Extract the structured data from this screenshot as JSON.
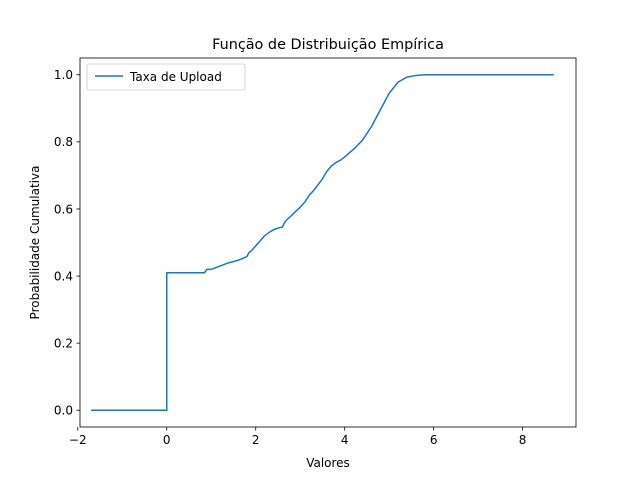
{
  "chart_data": {
    "type": "line",
    "title": "Função de Distribuição Empírica",
    "xlabel": "Valores",
    "ylabel": "Probabilidade Cumulativa",
    "xlim": [
      -1.95,
      9.2
    ],
    "ylim": [
      -0.05,
      1.05
    ],
    "xticks": [
      -2,
      0,
      2,
      4,
      6,
      8
    ],
    "xtick_labels": [
      "−2",
      "0",
      "2",
      "4",
      "6",
      "8"
    ],
    "yticks": [
      0.0,
      0.2,
      0.4,
      0.6,
      0.8,
      1.0
    ],
    "ytick_labels": [
      "0.0",
      "0.2",
      "0.4",
      "0.6",
      "0.8",
      "1.0"
    ],
    "grid": false,
    "legend_position": "upper-left",
    "series": [
      {
        "name": "Taxa de Upload",
        "color": "#1f77b4",
        "x": [
          -1.7,
          -0.3,
          0.0,
          0.0,
          0.5,
          0.85,
          0.9,
          1.0,
          1.1,
          1.2,
          1.3,
          1.4,
          1.5,
          1.6,
          1.7,
          1.8,
          1.85,
          1.9,
          2.0,
          2.1,
          2.2,
          2.3,
          2.4,
          2.5,
          2.6,
          2.65,
          2.7,
          2.8,
          2.9,
          3.0,
          3.1,
          3.2,
          3.3,
          3.4,
          3.5,
          3.6,
          3.7,
          3.8,
          3.9,
          4.0,
          4.2,
          4.4,
          4.6,
          4.8,
          5.0,
          5.2,
          5.4,
          5.6,
          5.8,
          6.0,
          6.5,
          7.0,
          8.0,
          8.7
        ],
        "y": [
          0.0,
          0.0,
          0.0,
          0.41,
          0.41,
          0.41,
          0.42,
          0.42,
          0.425,
          0.43,
          0.435,
          0.44,
          0.443,
          0.447,
          0.452,
          0.458,
          0.47,
          0.475,
          0.49,
          0.505,
          0.52,
          0.53,
          0.538,
          0.543,
          0.546,
          0.56,
          0.568,
          0.58,
          0.593,
          0.605,
          0.62,
          0.64,
          0.655,
          0.672,
          0.69,
          0.712,
          0.728,
          0.738,
          0.745,
          0.755,
          0.778,
          0.805,
          0.845,
          0.895,
          0.945,
          0.978,
          0.993,
          0.998,
          1.0,
          1.0,
          1.0,
          1.0,
          1.0,
          1.0
        ]
      }
    ]
  }
}
